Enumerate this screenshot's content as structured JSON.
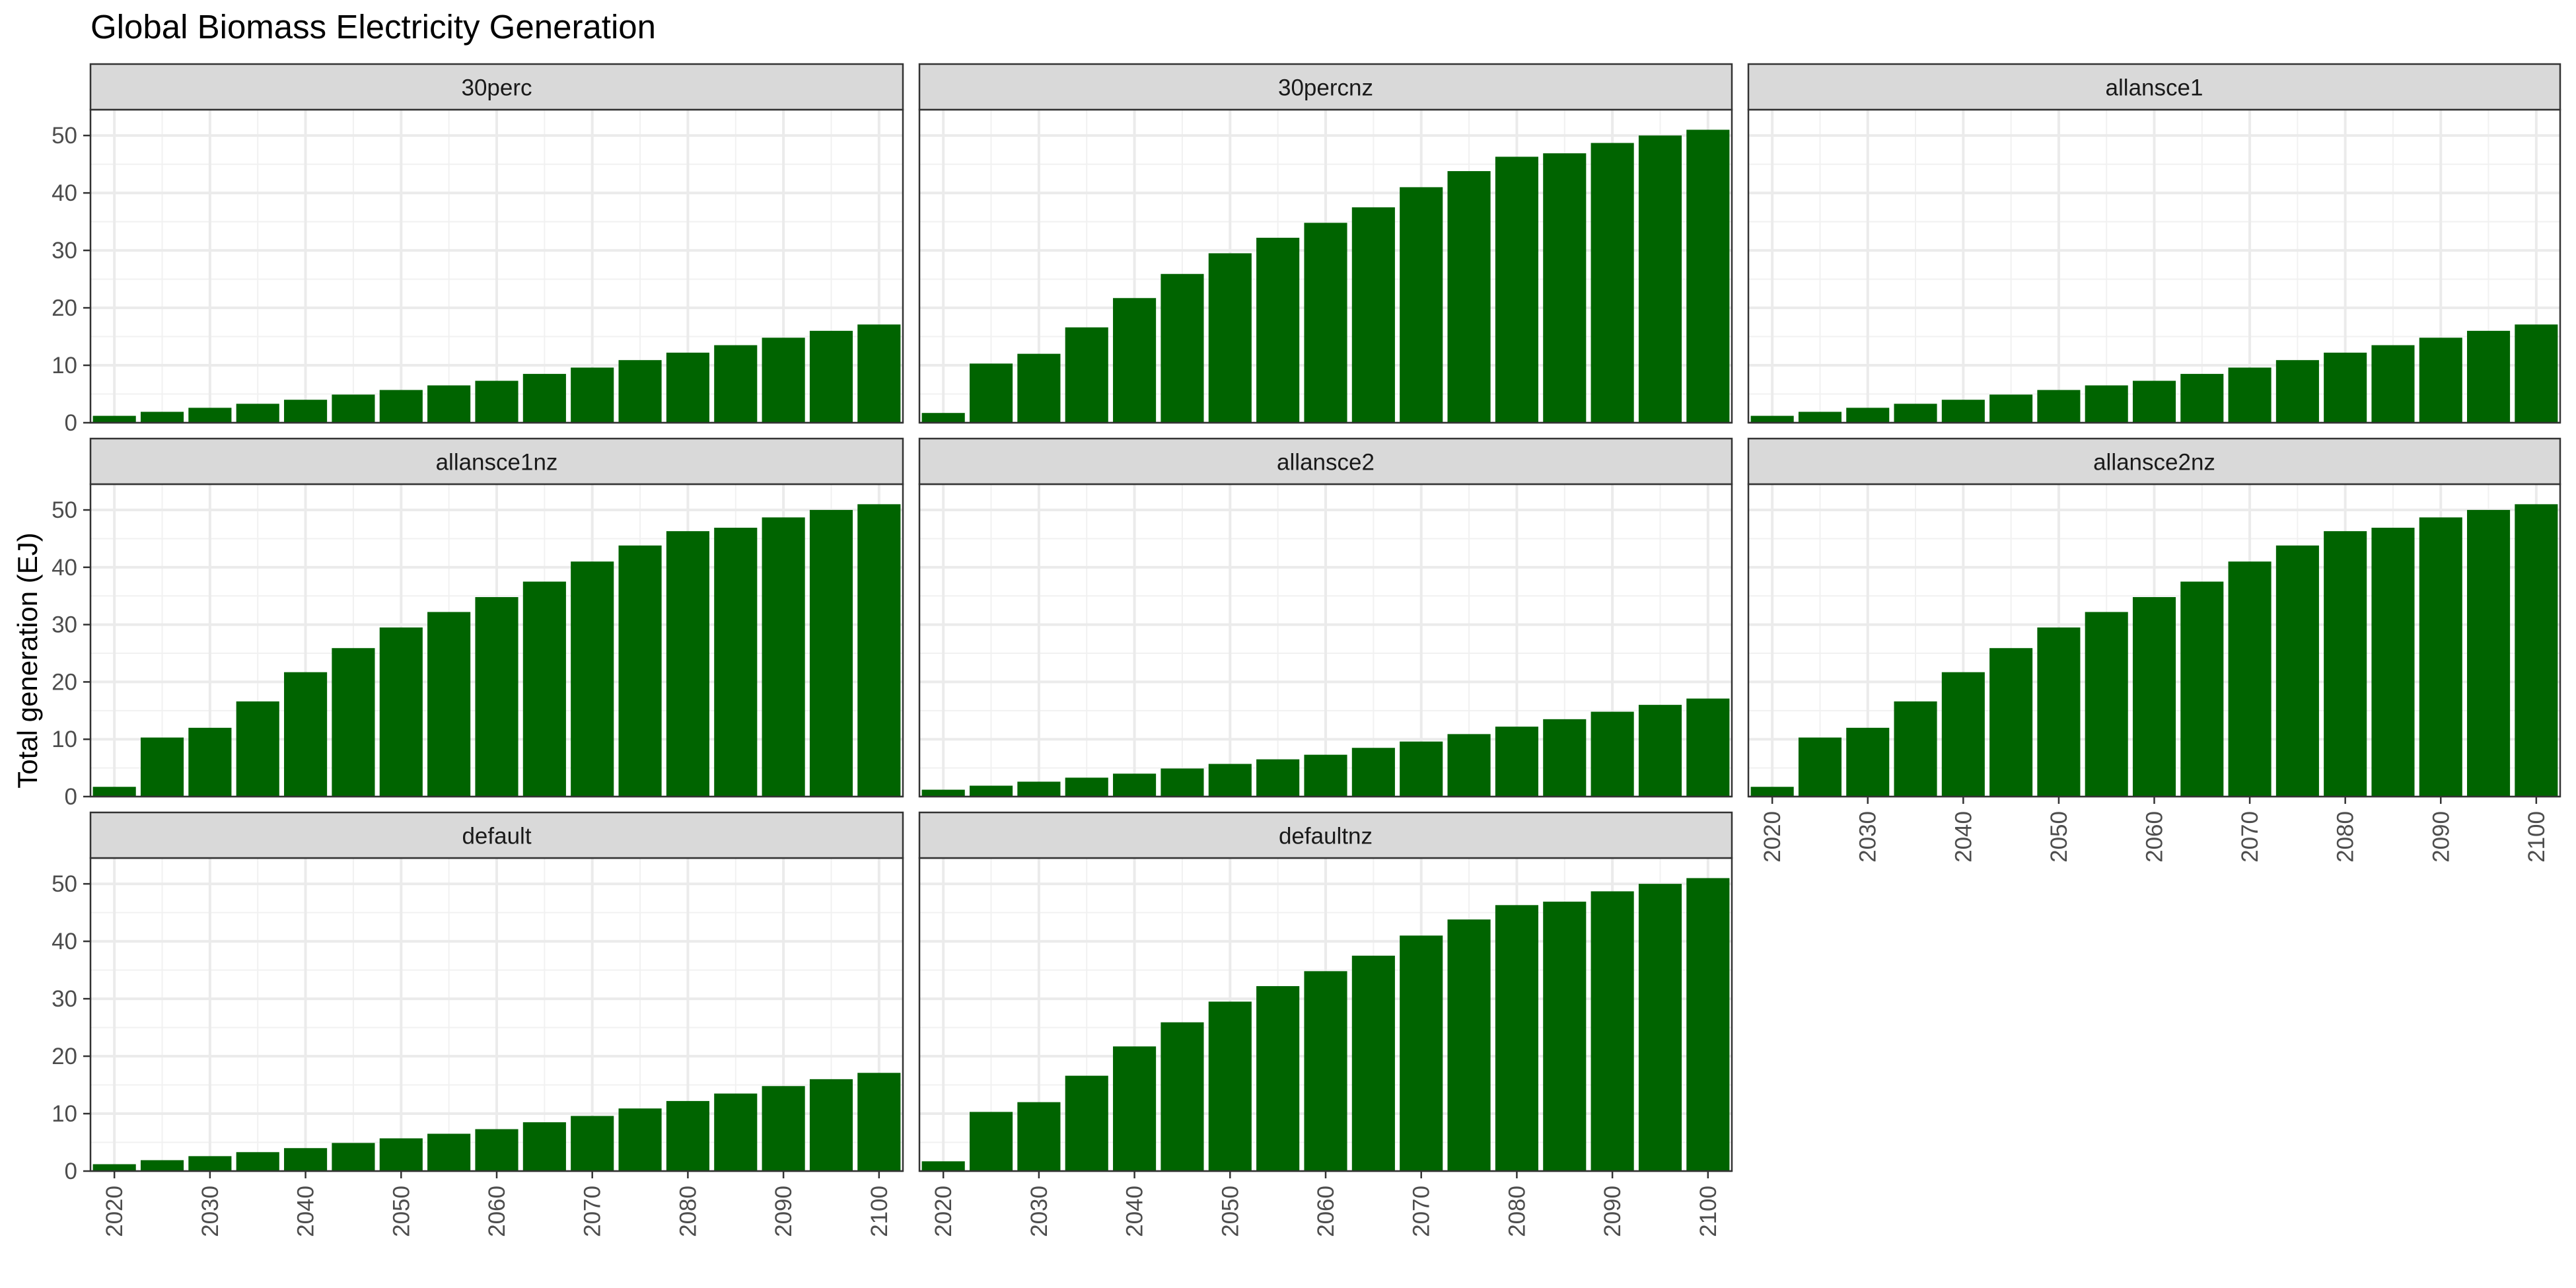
{
  "chart_data": {
    "type": "bar",
    "title": "Global Biomass Electricity Generation",
    "ylabel": "Total generation (EJ)",
    "xlabel": "",
    "ylim": [
      0,
      54.5
    ],
    "xlim": [
      2017.5,
      2102.5
    ],
    "y_ticks": [
      0,
      10,
      20,
      30,
      40,
      50
    ],
    "x_ticks": [
      2020,
      2030,
      2040,
      2050,
      2060,
      2070,
      2080,
      2090,
      2100
    ],
    "grid": true,
    "bar_color": "#006400",
    "strip_fill": "#d9d9d9",
    "x": [
      2020,
      2025,
      2030,
      2035,
      2040,
      2045,
      2050,
      2055,
      2060,
      2065,
      2070,
      2075,
      2080,
      2085,
      2090,
      2095,
      2100
    ],
    "panels": [
      {
        "name": "30perc",
        "values": [
          1.2,
          1.9,
          2.6,
          3.3,
          4.0,
          4.9,
          5.7,
          6.5,
          7.3,
          8.5,
          9.6,
          10.9,
          12.2,
          13.5,
          14.8,
          16.0,
          17.1
        ]
      },
      {
        "name": "30percnz",
        "values": [
          1.7,
          10.3,
          12.0,
          16.6,
          21.7,
          25.9,
          29.5,
          32.2,
          34.8,
          37.5,
          41.0,
          43.8,
          46.3,
          46.9,
          48.7,
          50.0,
          51.0
        ]
      },
      {
        "name": "allansce1",
        "values": [
          1.2,
          1.9,
          2.6,
          3.3,
          4.0,
          4.9,
          5.7,
          6.5,
          7.3,
          8.5,
          9.6,
          10.9,
          12.2,
          13.5,
          14.8,
          16.0,
          17.1
        ]
      },
      {
        "name": "allansce1nz",
        "values": [
          1.7,
          10.3,
          12.0,
          16.6,
          21.7,
          25.9,
          29.5,
          32.2,
          34.8,
          37.5,
          41.0,
          43.8,
          46.3,
          46.9,
          48.7,
          50.0,
          51.0
        ]
      },
      {
        "name": "allansce2",
        "values": [
          1.2,
          1.9,
          2.6,
          3.3,
          4.0,
          4.9,
          5.7,
          6.5,
          7.3,
          8.5,
          9.6,
          10.9,
          12.2,
          13.5,
          14.8,
          16.0,
          17.1
        ]
      },
      {
        "name": "allansce2nz",
        "values": [
          1.7,
          10.3,
          12.0,
          16.6,
          21.7,
          25.9,
          29.5,
          32.2,
          34.8,
          37.5,
          41.0,
          43.8,
          46.3,
          46.9,
          48.7,
          50.0,
          51.0
        ]
      },
      {
        "name": "default",
        "values": [
          1.2,
          1.9,
          2.6,
          3.3,
          4.0,
          4.9,
          5.7,
          6.5,
          7.3,
          8.5,
          9.6,
          10.9,
          12.2,
          13.5,
          14.8,
          16.0,
          17.1
        ]
      },
      {
        "name": "defaultnz",
        "values": [
          1.7,
          10.3,
          12.0,
          16.6,
          21.7,
          25.9,
          29.5,
          32.2,
          34.8,
          37.5,
          41.0,
          43.8,
          46.3,
          46.9,
          48.7,
          50.0,
          51.0
        ]
      }
    ]
  }
}
